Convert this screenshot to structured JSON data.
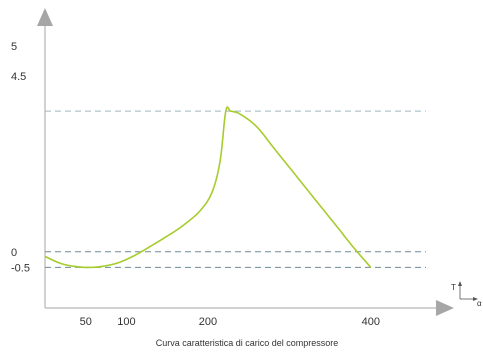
{
  "chart_data": {
    "type": "line",
    "caption": "Curva caratteristica di carico del compressore",
    "title": "",
    "xlabel": "",
    "ylabel": "",
    "x_ticks": [
      50,
      100,
      200,
      400
    ],
    "y_ticks": [
      5,
      4.5,
      0,
      -0.5
    ],
    "xlim": [
      0,
      480
    ],
    "ylim": [
      -1.8,
      7.8
    ],
    "reference_lines": [
      4.5,
      0,
      -0.5
    ],
    "legend_glyph": {
      "top": "T",
      "right": "α"
    },
    "grid": false,
    "colors": {
      "line": "#a6cc2e",
      "axis": "#a6a6a6",
      "reference": "#7f9fae",
      "text": "#333333"
    },
    "series": [
      {
        "values_x": [
          0,
          20,
          40,
          55,
          70,
          90,
          110,
          130,
          150,
          170,
          190,
          205,
          215,
          222,
          228,
          240,
          260,
          280,
          300,
          320,
          340,
          360,
          380,
          400
        ],
        "values_y": [
          -0.15,
          -0.38,
          -0.48,
          -0.5,
          -0.47,
          -0.35,
          -0.12,
          0.18,
          0.5,
          0.85,
          1.3,
          1.9,
          2.9,
          4.5,
          4.5,
          4.4,
          4.0,
          3.35,
          2.7,
          2.05,
          1.4,
          0.75,
          0.1,
          -0.5
        ]
      }
    ]
  }
}
